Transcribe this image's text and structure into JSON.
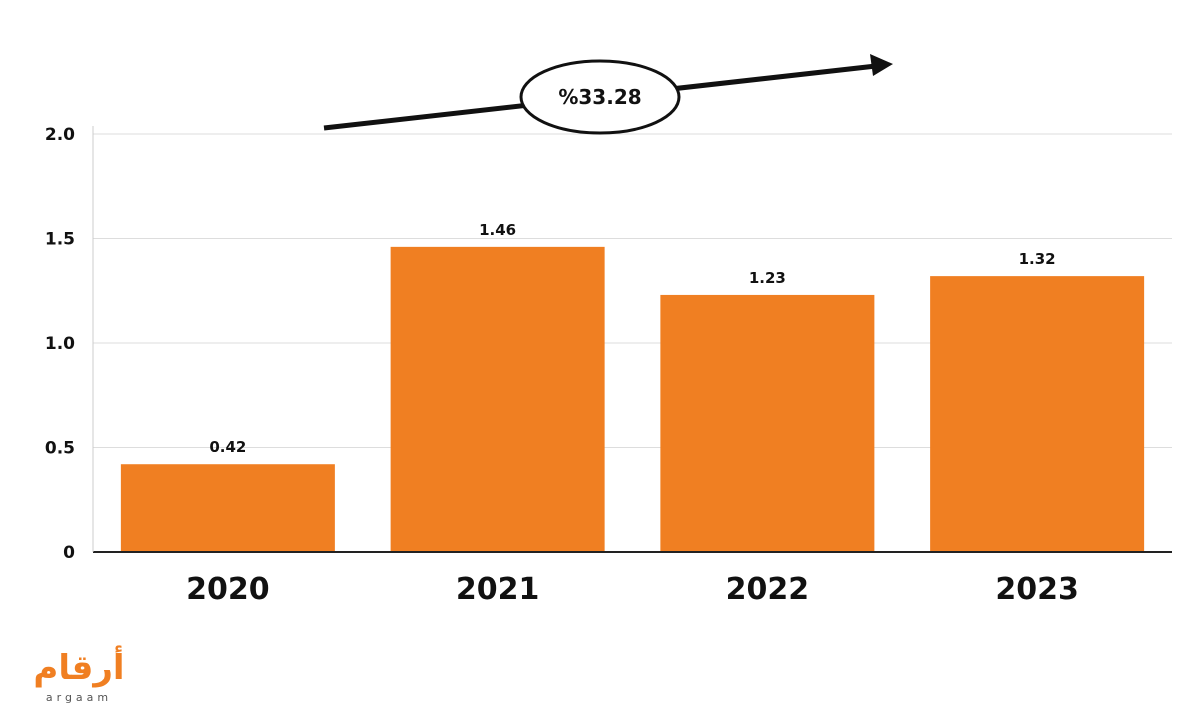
{
  "chart_data": {
    "type": "bar",
    "categories": [
      "2020",
      "2021",
      "2022",
      "2023"
    ],
    "values": [
      0.42,
      1.46,
      1.23,
      1.32
    ],
    "value_labels": [
      "0.42",
      "1.46",
      "1.23",
      "1.32"
    ],
    "ylim": [
      0,
      2.0
    ],
    "yticks": [
      0,
      0.5,
      1.0,
      1.5,
      2.0
    ],
    "ytick_labels": [
      "0",
      "0.5",
      "1.0",
      "1.5",
      "2.0"
    ],
    "grid": true,
    "bar_color": "#f07f22",
    "growth_annotation": "%33.28"
  },
  "logo": {
    "arabic": "أرقام",
    "latin": "argaam",
    "color": "#f07f22"
  }
}
